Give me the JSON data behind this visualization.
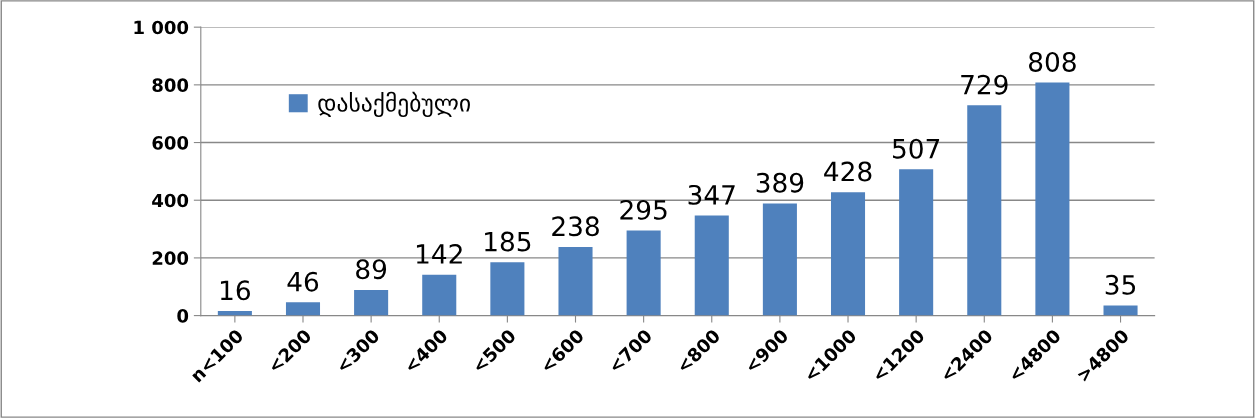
{
  "chart_data": {
    "type": "bar",
    "categories": [
      "n<100",
      "<200",
      "<300",
      "<400",
      "<500",
      "<600",
      "<700",
      "<800",
      "<900",
      "<1000",
      "<1200",
      "<2400",
      "<4800",
      ">4800"
    ],
    "series": [
      {
        "name": "დასაქმებული",
        "color": "#4f81bd",
        "values": [
          16,
          46,
          89,
          142,
          185,
          238,
          295,
          347,
          389,
          428,
          507,
          729,
          808,
          35
        ]
      }
    ],
    "ylim": [
      0,
      1000
    ],
    "yticks": [
      0,
      200,
      400,
      600,
      800,
      {
        "value": 1000,
        "label": "1 000"
      }
    ],
    "grid": "y",
    "legend": "top left",
    "data_labels": true
  }
}
